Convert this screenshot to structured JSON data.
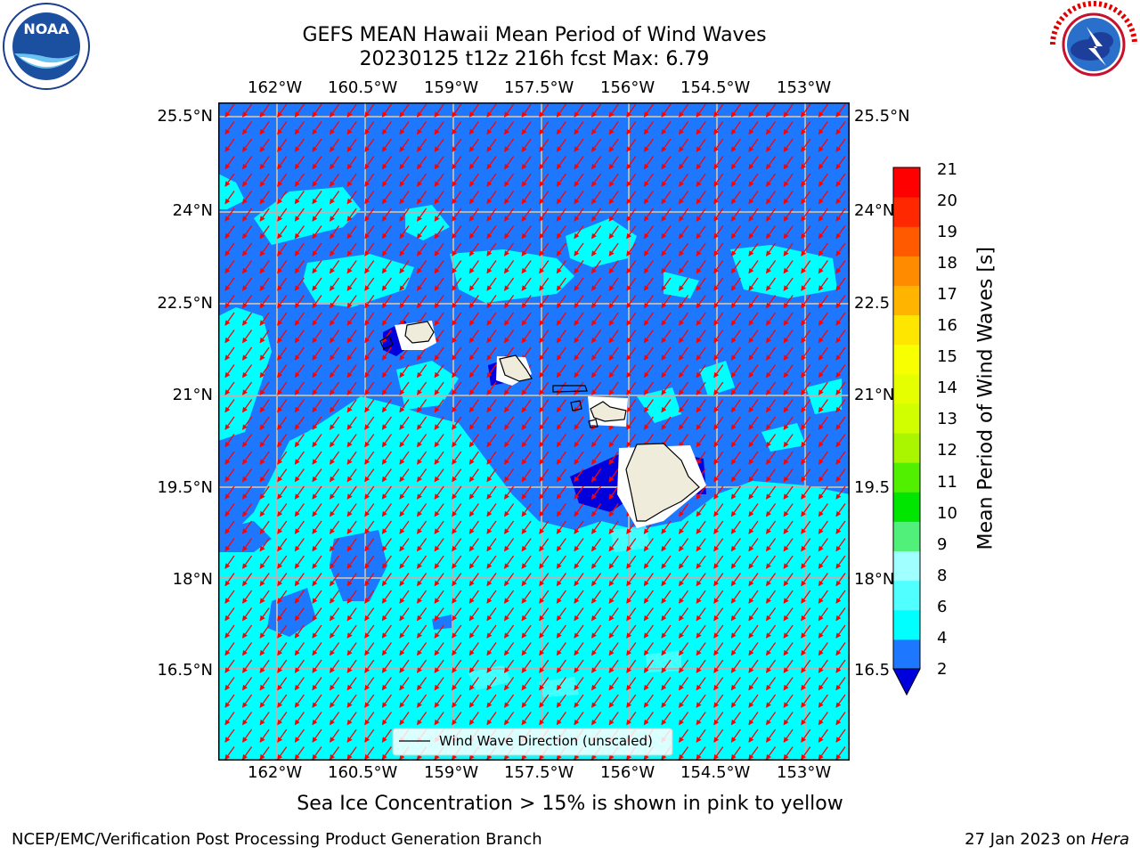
{
  "header": {
    "title_line1": "GEFS MEAN Hawaii Mean Period of Wind Waves",
    "title_line2": "20230125 t12z 216h fcst   Max: 6.79"
  },
  "logos": {
    "left": {
      "name": "noaa-logo",
      "text": "NOAA",
      "ring_text": "NATIONAL OCEANIC AND ATMOSPHERIC ADMINISTRATION · U.S. DEPARTMENT OF COMMERCE"
    },
    "right": {
      "name": "nws-logo",
      "ring_text": "NATIONAL WEATHER SERVICE"
    }
  },
  "map": {
    "lon_ticks": [
      "162°W",
      "160.5°W",
      "159°W",
      "157.5°W",
      "156°W",
      "154.5°W",
      "153°W"
    ],
    "lat_ticks_left": [
      "25.5°N",
      "24°N",
      "22.5°N",
      "21°N",
      "19.5°N",
      "18°N",
      "16.5°N"
    ],
    "lat_ticks_right": [
      "25.5°N",
      "24°N",
      "22.5",
      "21°N",
      "19.5",
      "18°N",
      "16.5"
    ],
    "legend_label": "Wind Wave Direction (unscaled)",
    "colors": {
      "band_2_4": "#1e78ff",
      "band_4_6": "#00ffff",
      "below_2": "#0000dd",
      "land": "#efecdc",
      "arrow": "#ff0000",
      "grid": "#b4b4b4"
    }
  },
  "colorbar": {
    "label": "Mean Period of Wind Waves [s]",
    "ticks": [
      "2",
      "4",
      "6",
      "8",
      "9",
      "10",
      "11",
      "12",
      "13",
      "14",
      "15",
      "16",
      "17",
      "18",
      "19",
      "20",
      "21"
    ],
    "colors": [
      "#1e78ff",
      "#00ffff",
      "#50ffff",
      "#a0ffff",
      "#50f07a",
      "#00e600",
      "#50f000",
      "#aaf500",
      "#d2ff00",
      "#e6ff00",
      "#f8ff00",
      "#ffe600",
      "#ffb400",
      "#ff8c00",
      "#ff5a00",
      "#ff2800",
      "#ff0000"
    ],
    "under_color": "#0000dd"
  },
  "footer": {
    "note": "Sea Ice Concentration > 15% is shown in pink to yellow",
    "branch": "NCEP/EMC/Verification Post Processing Product Generation Branch",
    "date": "27 Jan 2023 on ",
    "machine": "Hera"
  }
}
